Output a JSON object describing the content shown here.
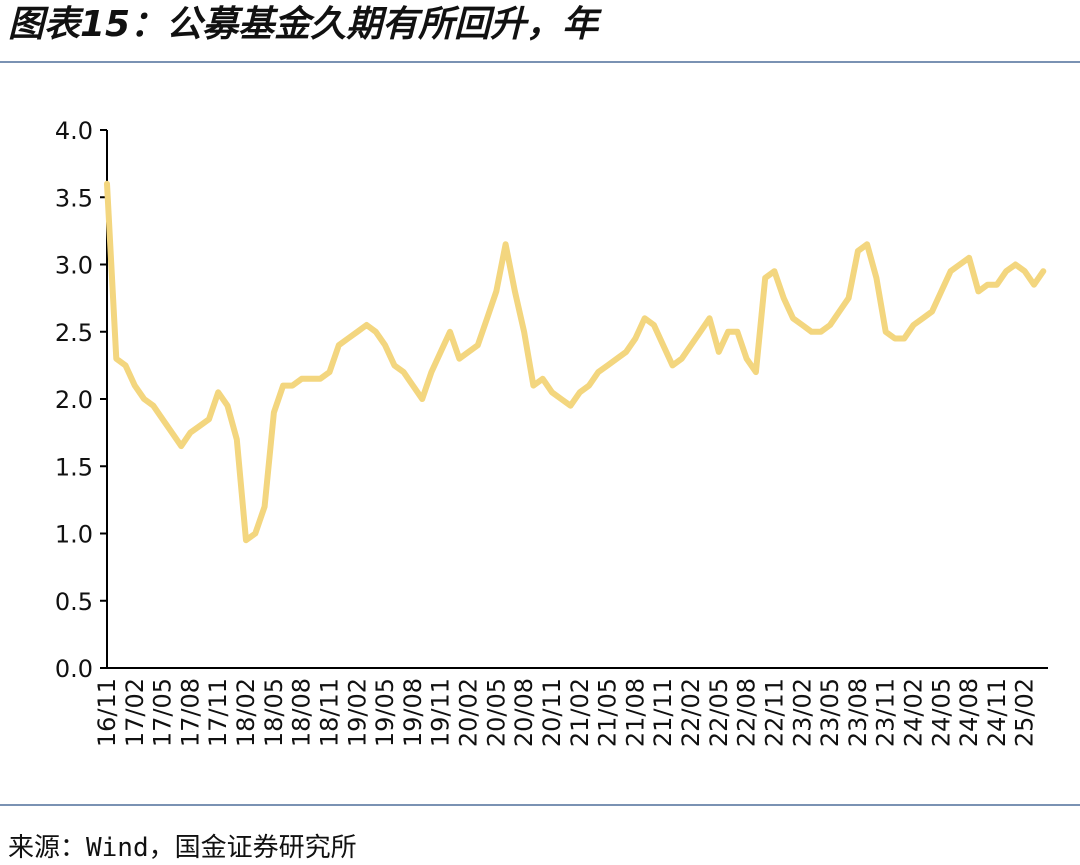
{
  "chart_data": {
    "type": "line",
    "title": "图表15：公募基金久期有所回升，年",
    "source": "来源：Wind，国金证券研究所",
    "categories": [
      "16/11",
      null,
      null,
      "17/02",
      null,
      null,
      "17/05",
      null,
      null,
      "17/08",
      null,
      null,
      "17/11",
      null,
      null,
      "18/02",
      null,
      null,
      "18/05",
      null,
      null,
      "18/08",
      null,
      null,
      "18/11",
      null,
      null,
      "19/02",
      null,
      null,
      "19/05",
      null,
      null,
      "19/08",
      null,
      null,
      "19/11",
      null,
      null,
      "20/02",
      null,
      null,
      "20/05",
      null,
      null,
      "20/08",
      null,
      null,
      "20/11",
      null,
      null,
      "21/02",
      null,
      null,
      "21/05",
      null,
      null,
      "21/08",
      null,
      null,
      "21/11",
      null,
      null,
      "22/02",
      null,
      null,
      "22/05",
      null,
      null,
      "22/08",
      null,
      null,
      "22/11",
      null,
      null,
      "23/02",
      null,
      null,
      "23/05",
      null,
      null,
      "23/08",
      null,
      null,
      "23/11",
      null,
      null,
      "24/02",
      null,
      null,
      "24/05",
      null,
      null,
      "24/08",
      null,
      null,
      "24/11",
      null,
      null,
      "25/02",
      null,
      null
    ],
    "values": [
      3.6,
      2.3,
      2.25,
      2.1,
      2.0,
      1.95,
      1.85,
      1.75,
      1.65,
      1.75,
      1.8,
      1.85,
      2.05,
      1.95,
      1.7,
      0.95,
      1.0,
      1.2,
      1.9,
      2.1,
      2.1,
      2.15,
      2.15,
      2.15,
      2.2,
      2.4,
      2.45,
      2.5,
      2.55,
      2.5,
      2.4,
      2.25,
      2.2,
      2.1,
      2.0,
      2.2,
      2.35,
      2.5,
      2.3,
      2.35,
      2.4,
      2.6,
      2.8,
      3.15,
      2.8,
      2.5,
      2.1,
      2.15,
      2.05,
      2.0,
      1.95,
      2.05,
      2.1,
      2.2,
      2.25,
      2.3,
      2.35,
      2.45,
      2.6,
      2.55,
      2.4,
      2.25,
      2.3,
      2.4,
      2.5,
      2.6,
      2.35,
      2.5,
      2.5,
      2.3,
      2.2,
      2.9,
      2.95,
      2.75,
      2.6,
      2.55,
      2.5,
      2.5,
      2.55,
      2.65,
      2.75,
      3.1,
      3.15,
      2.9,
      2.5,
      2.45,
      2.45,
      2.55,
      2.6,
      2.65,
      2.8,
      2.95,
      3.0,
      3.05,
      2.8,
      2.85,
      2.85,
      2.95,
      3.0,
      2.95,
      2.85,
      2.95
    ],
    "color": "#f3d67f",
    "ylim": [
      0,
      4
    ],
    "yticks": [
      {
        "value": 0,
        "label": "0.0"
      },
      {
        "value": 0.5,
        "label": "0.5"
      },
      {
        "value": 1,
        "label": "1.0"
      },
      {
        "value": 1.5,
        "label": "1.5"
      },
      {
        "value": 2,
        "label": "2.0"
      },
      {
        "value": 2.5,
        "label": "2.5"
      },
      {
        "value": 3,
        "label": "3.0"
      },
      {
        "value": 3.5,
        "label": "3.5"
      },
      {
        "value": 4,
        "label": "4.0"
      }
    ]
  }
}
